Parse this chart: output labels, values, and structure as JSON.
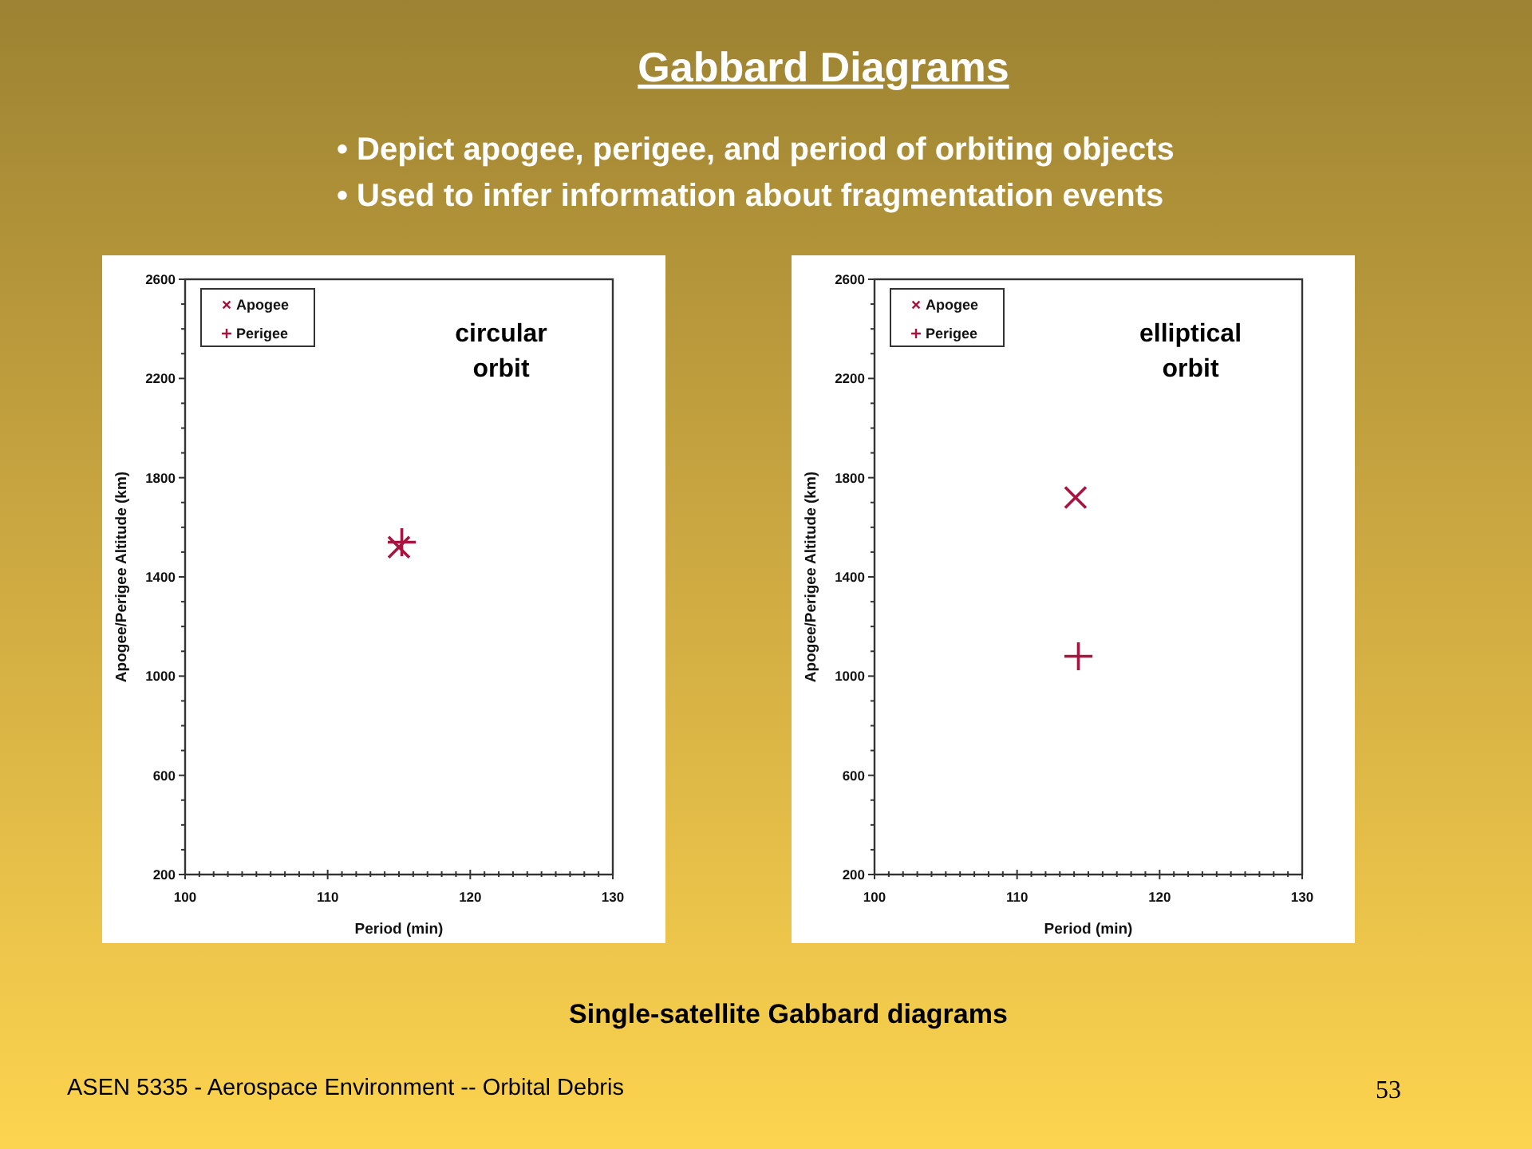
{
  "chart_data": [
    {
      "type": "other",
      "title": "Gabbard Diagrams",
      "annotations": [
        "• Depict apogee, perigee, and period of orbiting objects",
        "• Used to infer information about fragmentation events"
      ]
    },
    {
      "type": "scatter",
      "xlabel": "Period (min)",
      "ylabel": "Apogee/Perigee Altitude (km)",
      "annotations": [
        "circular\norbit"
      ],
      "legend": "top left",
      "xlim": [
        100,
        130
      ],
      "ylim": [
        200,
        2600
      ],
      "xticks": [
        100,
        {
          "value": 101,
          "label": null
        },
        {
          "value": 102,
          "label": null
        },
        {
          "value": 103,
          "label": null
        },
        {
          "value": 104,
          "label": null
        },
        {
          "value": 105,
          "label": null
        },
        {
          "value": 106,
          "label": null
        },
        {
          "value": 107,
          "label": null
        },
        {
          "value": 108,
          "label": null
        },
        {
          "value": 109,
          "label": null
        },
        110,
        {
          "value": 111,
          "label": null
        },
        {
          "value": 112,
          "label": null
        },
        {
          "value": 113,
          "label": null
        },
        {
          "value": 114,
          "label": null
        },
        {
          "value": 115,
          "label": null
        },
        {
          "value": 116,
          "label": null
        },
        {
          "value": 117,
          "label": null
        },
        {
          "value": 118,
          "label": null
        },
        {
          "value": 119,
          "label": null
        },
        120,
        {
          "value": 121,
          "label": null
        },
        {
          "value": 122,
          "label": null
        },
        {
          "value": 123,
          "label": null
        },
        {
          "value": 124,
          "label": null
        },
        {
          "value": 125,
          "label": null
        },
        {
          "value": 126,
          "label": null
        },
        {
          "value": 127,
          "label": null
        },
        {
          "value": 128,
          "label": null
        },
        {
          "value": 129,
          "label": null
        },
        130
      ],
      "yticks": [
        200,
        {
          "value": 300,
          "label": null
        },
        {
          "value": 400,
          "label": null
        },
        {
          "value": 500,
          "label": null
        },
        600,
        {
          "value": 700,
          "label": null
        },
        {
          "value": 800,
          "label": null
        },
        {
          "value": 900,
          "label": null
        },
        1000,
        {
          "value": 1100,
          "label": null
        },
        {
          "value": 1200,
          "label": null
        },
        {
          "value": 1300,
          "label": null
        },
        1400,
        {
          "value": 1500,
          "label": null
        },
        {
          "value": 1600,
          "label": null
        },
        {
          "value": 1700,
          "label": null
        },
        1800,
        {
          "value": 1900,
          "label": null
        },
        {
          "value": 2000,
          "label": null
        },
        {
          "value": 2100,
          "label": null
        },
        2200,
        {
          "value": 2300,
          "label": null
        },
        {
          "value": 2400,
          "label": null
        },
        {
          "value": 2500,
          "label": null
        },
        2600
      ],
      "series": [
        {
          "name": "Apogee",
          "color": "#a6143f",
          "marker": "x",
          "x": [
            115.0
          ],
          "values": [
            1520
          ]
        },
        {
          "name": "Perigee",
          "color": "#a6143f",
          "marker": "cross",
          "x": [
            115.2
          ],
          "values": [
            1540
          ]
        }
      ]
    },
    {
      "type": "scatter",
      "xlabel": "Period (min)",
      "ylabel": "Apogee/Perigee Altitude (km)",
      "annotations": [
        "elliptical\norbit"
      ],
      "legend": "top left",
      "xlim": [
        100,
        130
      ],
      "ylim": [
        200,
        2600
      ],
      "xticks": [
        100,
        {
          "value": 101,
          "label": null
        },
        {
          "value": 102,
          "label": null
        },
        {
          "value": 103,
          "label": null
        },
        {
          "value": 104,
          "label": null
        },
        {
          "value": 105,
          "label": null
        },
        {
          "value": 106,
          "label": null
        },
        {
          "value": 107,
          "label": null
        },
        {
          "value": 108,
          "label": null
        },
        {
          "value": 109,
          "label": null
        },
        110,
        {
          "value": 111,
          "label": null
        },
        {
          "value": 112,
          "label": null
        },
        {
          "value": 113,
          "label": null
        },
        {
          "value": 114,
          "label": null
        },
        {
          "value": 115,
          "label": null
        },
        {
          "value": 116,
          "label": null
        },
        {
          "value": 117,
          "label": null
        },
        {
          "value": 118,
          "label": null
        },
        {
          "value": 119,
          "label": null
        },
        120,
        {
          "value": 121,
          "label": null
        },
        {
          "value": 122,
          "label": null
        },
        {
          "value": 123,
          "label": null
        },
        {
          "value": 124,
          "label": null
        },
        {
          "value": 125,
          "label": null
        },
        {
          "value": 126,
          "label": null
        },
        {
          "value": 127,
          "label": null
        },
        {
          "value": 128,
          "label": null
        },
        {
          "value": 129,
          "label": null
        },
        130
      ],
      "yticks": [
        200,
        {
          "value": 300,
          "label": null
        },
        {
          "value": 400,
          "label": null
        },
        {
          "value": 500,
          "label": null
        },
        600,
        {
          "value": 700,
          "label": null
        },
        {
          "value": 800,
          "label": null
        },
        {
          "value": 900,
          "label": null
        },
        1000,
        {
          "value": 1100,
          "label": null
        },
        {
          "value": 1200,
          "label": null
        },
        {
          "value": 1300,
          "label": null
        },
        1400,
        {
          "value": 1500,
          "label": null
        },
        {
          "value": 1600,
          "label": null
        },
        {
          "value": 1700,
          "label": null
        },
        1800,
        {
          "value": 1900,
          "label": null
        },
        {
          "value": 2000,
          "label": null
        },
        {
          "value": 2100,
          "label": null
        },
        2200,
        {
          "value": 2300,
          "label": null
        },
        {
          "value": 2400,
          "label": null
        },
        {
          "value": 2500,
          "label": null
        },
        2600
      ],
      "series": [
        {
          "name": "Apogee",
          "color": "#a6143f",
          "marker": "x",
          "x": [
            114.1
          ],
          "values": [
            1720
          ]
        },
        {
          "name": "Perigee",
          "color": "#a6143f",
          "marker": "cross",
          "x": [
            114.3
          ],
          "values": [
            1080
          ]
        }
      ]
    },
    {
      "type": "other",
      "title": "Single-satellite Gabbard diagrams",
      "annotations": [
        "ASEN 5335 - Aerospace Environment -- Orbital Debris",
        "53"
      ]
    }
  ]
}
